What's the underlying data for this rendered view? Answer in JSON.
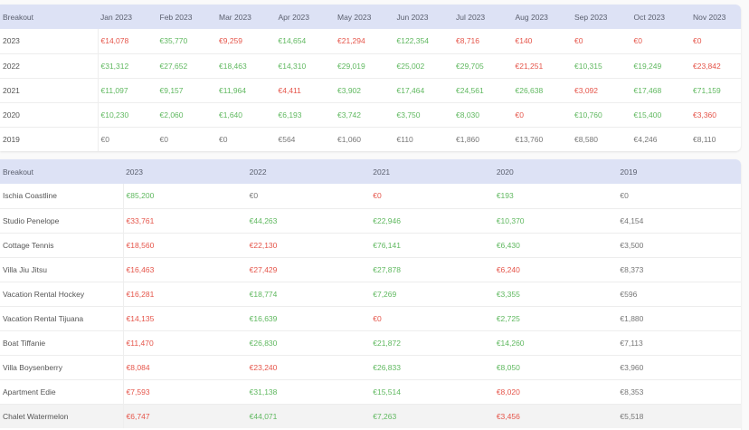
{
  "monthly_table": {
    "columns": [
      "Breakout",
      "Jan 2023",
      "Feb 2023",
      "Mar 2023",
      "Apr 2023",
      "May 2023",
      "Jun 2023",
      "Jul 2023",
      "Aug 2023",
      "Sep 2023",
      "Oct 2023",
      "Nov 2023"
    ],
    "rows": [
      {
        "label": "2023",
        "cells": [
          {
            "v": "€14,078",
            "s": "neg"
          },
          {
            "v": "€35,770",
            "s": "pos"
          },
          {
            "v": "€9,259",
            "s": "neg"
          },
          {
            "v": "€14,654",
            "s": "pos"
          },
          {
            "v": "€21,294",
            "s": "neg"
          },
          {
            "v": "€122,354",
            "s": "pos"
          },
          {
            "v": "€8,716",
            "s": "neg"
          },
          {
            "v": "€140",
            "s": "neg"
          },
          {
            "v": "€0",
            "s": "neg"
          },
          {
            "v": "€0",
            "s": "neg"
          },
          {
            "v": "€0",
            "s": "neg"
          }
        ]
      },
      {
        "label": "2022",
        "cells": [
          {
            "v": "€31,312",
            "s": "pos"
          },
          {
            "v": "€27,652",
            "s": "pos"
          },
          {
            "v": "€18,463",
            "s": "pos"
          },
          {
            "v": "€14,310",
            "s": "pos"
          },
          {
            "v": "€29,019",
            "s": "pos"
          },
          {
            "v": "€25,002",
            "s": "pos"
          },
          {
            "v": "€29,705",
            "s": "pos"
          },
          {
            "v": "€21,251",
            "s": "neg"
          },
          {
            "v": "€10,315",
            "s": "pos"
          },
          {
            "v": "€19,249",
            "s": "pos"
          },
          {
            "v": "€23,842",
            "s": "neg"
          }
        ]
      },
      {
        "label": "2021",
        "cells": [
          {
            "v": "€11,097",
            "s": "pos"
          },
          {
            "v": "€9,157",
            "s": "pos"
          },
          {
            "v": "€11,964",
            "s": "pos"
          },
          {
            "v": "€4,411",
            "s": "neg"
          },
          {
            "v": "€3,902",
            "s": "pos"
          },
          {
            "v": "€17,464",
            "s": "pos"
          },
          {
            "v": "€24,561",
            "s": "pos"
          },
          {
            "v": "€26,638",
            "s": "pos"
          },
          {
            "v": "€3,092",
            "s": "neg"
          },
          {
            "v": "€17,468",
            "s": "pos"
          },
          {
            "v": "€71,159",
            "s": "pos"
          }
        ]
      },
      {
        "label": "2020",
        "cells": [
          {
            "v": "€10,230",
            "s": "pos"
          },
          {
            "v": "€2,060",
            "s": "pos"
          },
          {
            "v": "€1,640",
            "s": "pos"
          },
          {
            "v": "€6,193",
            "s": "pos"
          },
          {
            "v": "€3,742",
            "s": "pos"
          },
          {
            "v": "€3,750",
            "s": "pos"
          },
          {
            "v": "€8,030",
            "s": "pos"
          },
          {
            "v": "€0",
            "s": "neg"
          },
          {
            "v": "€10,760",
            "s": "pos"
          },
          {
            "v": "€15,400",
            "s": "pos"
          },
          {
            "v": "€3,360",
            "s": "neg"
          }
        ]
      },
      {
        "label": "2019",
        "cells": [
          {
            "v": "€0",
            "s": "neu"
          },
          {
            "v": "€0",
            "s": "neu"
          },
          {
            "v": "€0",
            "s": "neu"
          },
          {
            "v": "€564",
            "s": "neu"
          },
          {
            "v": "€1,060",
            "s": "neu"
          },
          {
            "v": "€110",
            "s": "neu"
          },
          {
            "v": "€1,860",
            "s": "neu"
          },
          {
            "v": "€13,760",
            "s": "neu"
          },
          {
            "v": "€8,580",
            "s": "neu"
          },
          {
            "v": "€4,246",
            "s": "neu"
          },
          {
            "v": "€8,110",
            "s": "neu"
          }
        ]
      }
    ]
  },
  "property_table": {
    "columns": [
      "Breakout",
      "2023",
      "2022",
      "2021",
      "2020",
      "2019"
    ],
    "rows": [
      {
        "label": "Ischia Coastline",
        "cells": [
          {
            "v": "€85,200",
            "s": "pos"
          },
          {
            "v": "€0",
            "s": "neu"
          },
          {
            "v": "€0",
            "s": "neg"
          },
          {
            "v": "€193",
            "s": "pos"
          },
          {
            "v": "€0",
            "s": "neu"
          }
        ]
      },
      {
        "label": "Studio Penelope",
        "cells": [
          {
            "v": "€33,761",
            "s": "neg"
          },
          {
            "v": "€44,263",
            "s": "pos"
          },
          {
            "v": "€22,946",
            "s": "pos"
          },
          {
            "v": "€10,370",
            "s": "pos"
          },
          {
            "v": "€4,154",
            "s": "neu"
          }
        ]
      },
      {
        "label": "Cottage Tennis",
        "cells": [
          {
            "v": "€18,560",
            "s": "neg"
          },
          {
            "v": "€22,130",
            "s": "neg"
          },
          {
            "v": "€76,141",
            "s": "pos"
          },
          {
            "v": "€6,430",
            "s": "pos"
          },
          {
            "v": "€3,500",
            "s": "neu"
          }
        ]
      },
      {
        "label": "Villa Jiu Jitsu",
        "cells": [
          {
            "v": "€16,463",
            "s": "neg"
          },
          {
            "v": "€27,429",
            "s": "neg"
          },
          {
            "v": "€27,878",
            "s": "pos"
          },
          {
            "v": "€6,240",
            "s": "neg"
          },
          {
            "v": "€8,373",
            "s": "neu"
          }
        ]
      },
      {
        "label": "Vacation Rental Hockey",
        "cells": [
          {
            "v": "€16,281",
            "s": "neg"
          },
          {
            "v": "€18,774",
            "s": "pos"
          },
          {
            "v": "€7,269",
            "s": "pos"
          },
          {
            "v": "€3,355",
            "s": "pos"
          },
          {
            "v": "€596",
            "s": "neu"
          }
        ]
      },
      {
        "label": "Vacation Rental Tijuana",
        "cells": [
          {
            "v": "€14,135",
            "s": "neg"
          },
          {
            "v": "€16,639",
            "s": "pos"
          },
          {
            "v": "€0",
            "s": "neg"
          },
          {
            "v": "€2,725",
            "s": "pos"
          },
          {
            "v": "€1,880",
            "s": "neu"
          }
        ]
      },
      {
        "label": "Boat Tiffanie",
        "cells": [
          {
            "v": "€11,470",
            "s": "neg"
          },
          {
            "v": "€26,830",
            "s": "pos"
          },
          {
            "v": "€21,872",
            "s": "pos"
          },
          {
            "v": "€14,260",
            "s": "pos"
          },
          {
            "v": "€7,113",
            "s": "neu"
          }
        ]
      },
      {
        "label": "Villa Boysenberry",
        "cells": [
          {
            "v": "€8,084",
            "s": "neg"
          },
          {
            "v": "€23,240",
            "s": "neg"
          },
          {
            "v": "€26,833",
            "s": "pos"
          },
          {
            "v": "€8,050",
            "s": "pos"
          },
          {
            "v": "€3,960",
            "s": "neu"
          }
        ]
      },
      {
        "label": "Apartment Edie",
        "cells": [
          {
            "v": "€7,593",
            "s": "neg"
          },
          {
            "v": "€31,138",
            "s": "pos"
          },
          {
            "v": "€15,514",
            "s": "pos"
          },
          {
            "v": "€8,020",
            "s": "neg"
          },
          {
            "v": "€8,353",
            "s": "neu"
          }
        ]
      },
      {
        "label": "Chalet Watermelon",
        "hover": true,
        "cells": [
          {
            "v": "€6,747",
            "s": "neg"
          },
          {
            "v": "€44,071",
            "s": "pos"
          },
          {
            "v": "€7,263",
            "s": "pos"
          },
          {
            "v": "€3,456",
            "s": "neg"
          },
          {
            "v": "€5,518",
            "s": "neu"
          }
        ]
      }
    ]
  },
  "colors": {
    "positive": "#5fb85f",
    "negative": "#e5554a",
    "neutral": "#777777",
    "header_bg": "#dde2f5"
  }
}
